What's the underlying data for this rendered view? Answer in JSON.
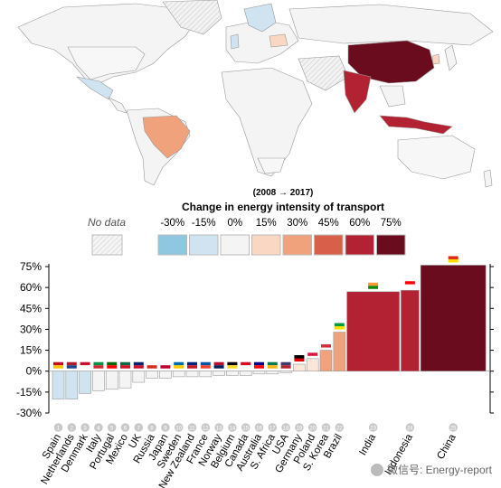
{
  "legend": {
    "period": "(2008 → 2017)",
    "title": "Change in energy intensity of transport",
    "no_data_label": "No data",
    "bins": [
      {
        "label": "-30%",
        "color": "#8fc7e0"
      },
      {
        "label": "-15%",
        "color": "#cfe4f0"
      },
      {
        "label": "0%",
        "color": "#f4f4f4"
      },
      {
        "label": "15%",
        "color": "#f9d7c2"
      },
      {
        "label": "30%",
        "color": "#f0a27d"
      },
      {
        "label": "45%",
        "color": "#d8604a"
      },
      {
        "label": "60%",
        "color": "#b32232"
      },
      {
        "label": "75%",
        "color": "#6b0b1e"
      }
    ]
  },
  "chart_data": {
    "type": "bar",
    "categories": [
      "Spain",
      "Netherlands",
      "Denmark",
      "Italy",
      "Portugal",
      "Mexico",
      "UK",
      "Russia",
      "Japan",
      "Sweden",
      "New Zealand",
      "France",
      "Norway",
      "Belgium",
      "Canada",
      "Australia",
      "S. Africa",
      "USA",
      "Germany",
      "Poland",
      "S. Korea",
      "Brazil",
      "India",
      "Indonesia",
      "China"
    ],
    "ranks": [
      "1",
      "2",
      "3",
      "4",
      "5",
      "6",
      "7",
      "8",
      "9",
      "10",
      "11",
      "12",
      "13",
      "14",
      "15",
      "16",
      "17",
      "18",
      "19",
      "20",
      "21",
      "22",
      "23",
      "24",
      "25"
    ],
    "values": [
      -20,
      -20,
      -16,
      -14,
      -13,
      -12,
      -8,
      -5,
      -5,
      -4,
      -4,
      -4,
      -3,
      -3,
      -3,
      -2,
      -2,
      -1,
      5,
      9,
      15,
      28,
      57,
      58,
      76
    ],
    "ylim": [
      -30,
      76
    ],
    "yticks": [
      "75%",
      "60%",
      "45%",
      "30%",
      "15%",
      "0%",
      "-15%",
      "-30%"
    ],
    "ytick_values": [
      75,
      60,
      45,
      30,
      15,
      0,
      -15,
      -30
    ],
    "xlabel": "",
    "ylabel": ""
  },
  "watermark": "微信号: Energy-report"
}
